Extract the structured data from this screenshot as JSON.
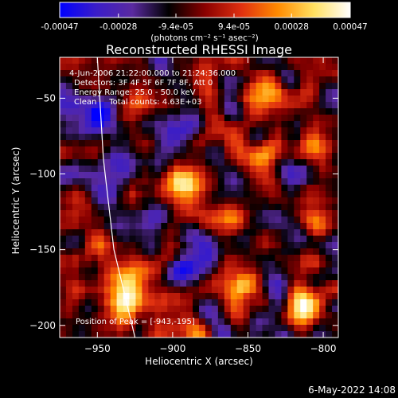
{
  "colorbar": {
    "tick_labels": [
      "-0.00047",
      "-0.00028",
      "-9.4e-05",
      "9.4e-05",
      "0.00028",
      "0.00047"
    ],
    "tick_values": [
      -0.00047,
      -0.00028,
      -9.4e-05,
      9.4e-05,
      0.00028,
      0.00047
    ],
    "range": [
      -0.00047,
      0.00047
    ],
    "units_label": "(photons cm⁻² s⁻¹ asec⁻²)"
  },
  "chart_data": {
    "type": "heatmap",
    "title": "Reconstructed RHESSI Image",
    "xlabel": "Heliocentric X (arcsec)",
    "ylabel": "Heliocentric Y (arcsec)",
    "xlim": [
      -975,
      -790
    ],
    "ylim": [
      -208,
      -23
    ],
    "x_ticks": [
      -950,
      -900,
      -850,
      -800
    ],
    "x_tick_labels": [
      "−950",
      "−900",
      "−850",
      "−800"
    ],
    "y_ticks": [
      -50,
      -100,
      -150,
      -200
    ],
    "y_tick_labels": [
      "−50",
      "−100",
      "−150",
      "−200"
    ],
    "colormap": [
      "#0000ff",
      "#3a1dc8",
      "#5a2aa0",
      "#000000",
      "#8a0000",
      "#e03010",
      "#ff8a00",
      "#ffe060",
      "#ffffff"
    ],
    "limb_line": {
      "color": "#ffffff",
      "points": [
        [
          -950,
          -23
        ],
        [
          -946,
          -90
        ],
        [
          -939,
          -150
        ],
        [
          -925,
          -208
        ]
      ]
    },
    "annotations": [
      "4-Jun-2006 21:22:00.000 to 21:24:36.000",
      "Detectors: 3F 4F 5F 6F 7F 8F, Att 0",
      "Energy Range: 25.0 - 50.0 keV",
      "Clean     Total counts: 4.63E+03"
    ],
    "peak_label": "Position of Peak = [-943,-195]",
    "hot_spots": [
      {
        "x": -810,
        "y": -185,
        "v": 1.0
      },
      {
        "x": -860,
        "y": -175,
        "v": 0.95
      },
      {
        "x": -930,
        "y": -185,
        "v": 0.9
      },
      {
        "x": -950,
        "y": -145,
        "v": 0.8
      },
      {
        "x": -930,
        "y": -170,
        "v": 0.75
      },
      {
        "x": -895,
        "y": -105,
        "v": 0.75
      },
      {
        "x": -840,
        "y": -50,
        "v": 0.65
      },
      {
        "x": -805,
        "y": -85,
        "v": 0.75
      },
      {
        "x": -805,
        "y": -130,
        "v": 0.6
      },
      {
        "x": -860,
        "y": -130,
        "v": 0.55
      },
      {
        "x": -880,
        "y": -30,
        "v": 0.5
      },
      {
        "x": -920,
        "y": -60,
        "v": 0.45
      },
      {
        "x": -845,
        "y": -95,
        "v": 0.5
      },
      {
        "x": -965,
        "y": -180,
        "v": 0.5
      },
      {
        "x": -965,
        "y": -120,
        "v": 0.45
      },
      {
        "x": -900,
        "y": -200,
        "v": 0.45
      }
    ],
    "cold_spots": [
      {
        "x": -955,
        "y": -60,
        "v": 0.6
      },
      {
        "x": -900,
        "y": -75,
        "v": 0.5
      },
      {
        "x": -880,
        "y": -150,
        "v": 0.45
      },
      {
        "x": -915,
        "y": -130,
        "v": 0.35
      },
      {
        "x": -835,
        "y": -150,
        "v": 0.35
      },
      {
        "x": -950,
        "y": -100,
        "v": 0.35
      }
    ]
  },
  "footer": {
    "date_stamp": "6-May-2022 14:08"
  }
}
